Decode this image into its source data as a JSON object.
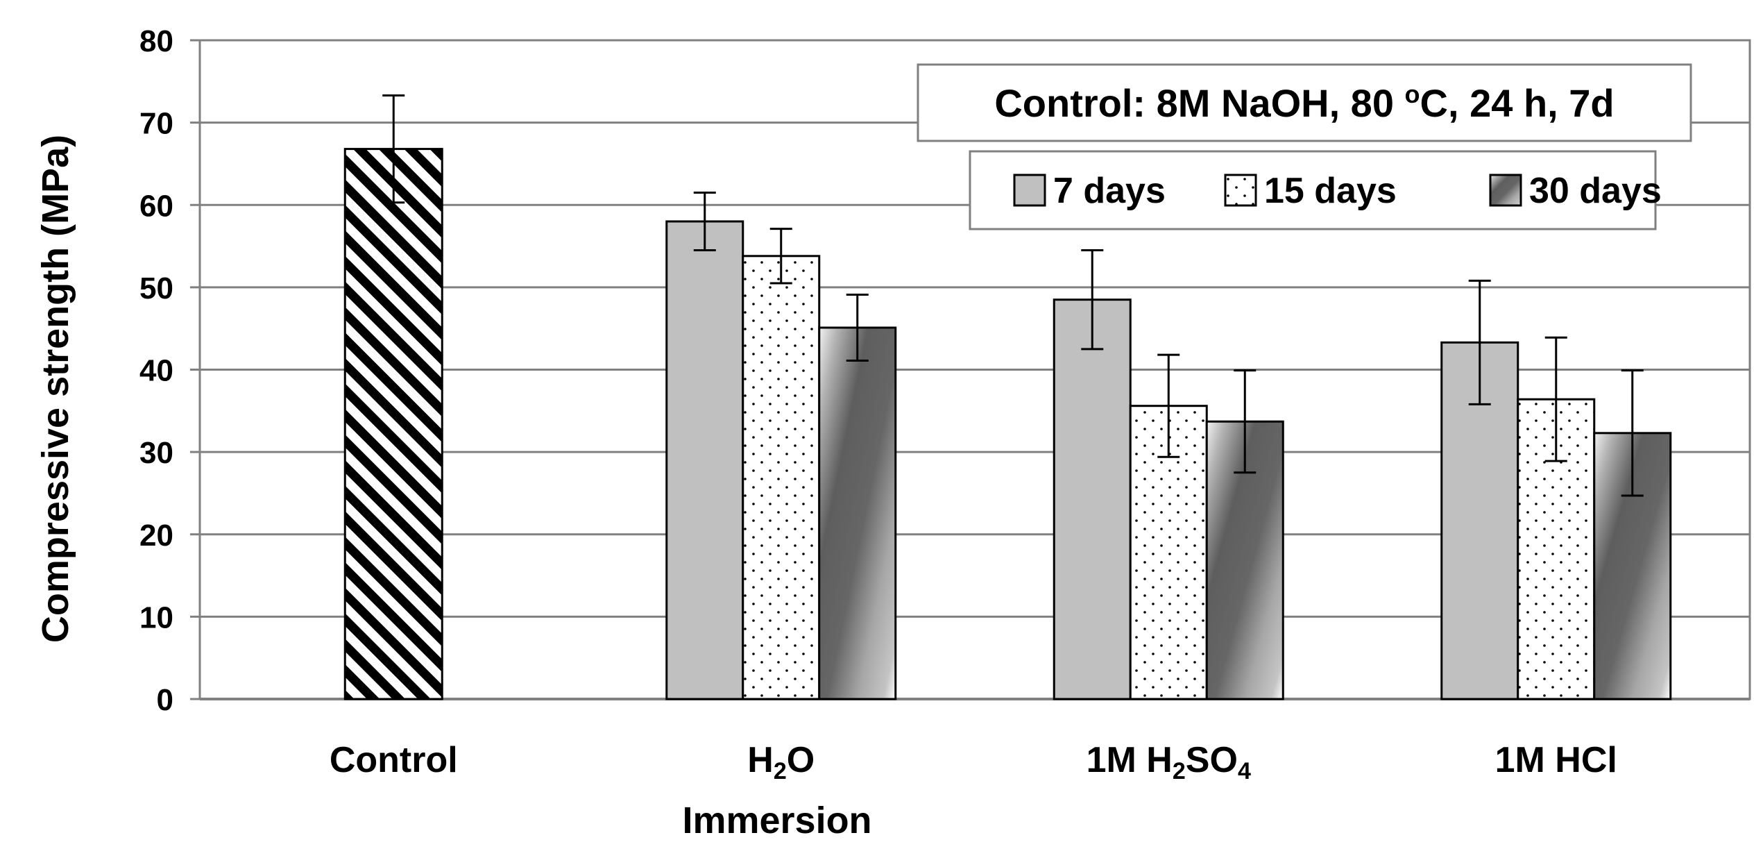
{
  "chart_data": {
    "type": "bar",
    "xlabel": "Immersion",
    "ylabel": "Compressive strength (MPa)",
    "ylim": [
      0,
      80
    ],
    "yticks": [
      "0",
      "10",
      "20",
      "30",
      "40",
      "50",
      "60",
      "70",
      "80"
    ],
    "grid": true,
    "annotation": {
      "pre": "Control: 8M NaOH, 80 ",
      "sup": "o",
      "post": "C, 24 h, 7d"
    },
    "legend_placement": "top-right",
    "categories": [
      {
        "pre": "Control",
        "sub1": "",
        "mid": "",
        "sub2": "",
        "post": ""
      },
      {
        "pre": "H",
        "sub1": "2",
        "mid": "O",
        "sub2": "",
        "post": ""
      },
      {
        "pre": "1M H",
        "sub1": "2",
        "mid": "SO",
        "sub2": "4",
        "post": ""
      },
      {
        "pre": "1M HCl",
        "sub1": "",
        "mid": "",
        "sub2": "",
        "post": ""
      }
    ],
    "control": {
      "value": 66.8,
      "error": 6.5
    },
    "series": [
      {
        "name": "7 days",
        "values": [
          null,
          58.0,
          48.5,
          43.3
        ],
        "errors": [
          null,
          3.5,
          6.0,
          7.5
        ]
      },
      {
        "name": "15 days",
        "values": [
          null,
          53.8,
          35.6,
          36.4
        ],
        "errors": [
          null,
          3.3,
          6.2,
          7.5
        ]
      },
      {
        "name": "30 days",
        "values": [
          null,
          45.1,
          33.7,
          32.3
        ],
        "errors": [
          null,
          4.0,
          6.2,
          7.6
        ]
      }
    ]
  }
}
